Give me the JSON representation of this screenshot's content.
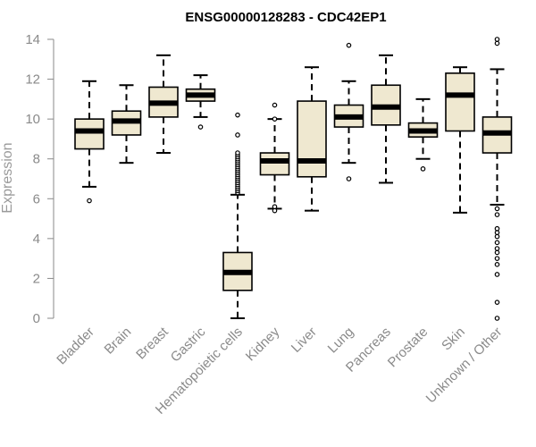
{
  "chart_data": {
    "type": "boxplot",
    "title": "ENSG00000128283 - CDC42EP1",
    "ylabel": "Expression",
    "xlabel": "",
    "ylim": [
      0,
      14
    ],
    "yticks": [
      0,
      2,
      4,
      6,
      8,
      10,
      12,
      14
    ],
    "colors": {
      "box_fill": "#efe8d0",
      "box_stroke": "#000000",
      "axis": "#8a8a8a",
      "text": "#8a8a8a"
    },
    "categories": [
      "Bladder",
      "Brain",
      "Breast",
      "Gastric",
      "Hematopoietic cells",
      "Kidney",
      "Liver",
      "Lung",
      "Pancreas",
      "Prostate",
      "Skin",
      "Unknown / Other"
    ],
    "boxes": [
      {
        "category": "Bladder",
        "whisker_low": 6.6,
        "q1": 8.5,
        "median": 9.4,
        "q3": 10.0,
        "whisker_high": 11.9,
        "outliers": [
          5.9
        ]
      },
      {
        "category": "Brain",
        "whisker_low": 7.8,
        "q1": 9.2,
        "median": 9.9,
        "q3": 10.4,
        "whisker_high": 11.7,
        "outliers": []
      },
      {
        "category": "Breast",
        "whisker_low": 8.3,
        "q1": 10.1,
        "median": 10.8,
        "q3": 11.6,
        "whisker_high": 13.2,
        "outliers": []
      },
      {
        "category": "Gastric",
        "whisker_low": 10.1,
        "q1": 10.9,
        "median": 11.2,
        "q3": 11.5,
        "whisker_high": 12.2,
        "outliers": [
          9.6
        ]
      },
      {
        "category": "Hematopoietic cells",
        "whisker_low": 0.0,
        "q1": 1.4,
        "median": 2.3,
        "q3": 3.3,
        "whisker_high": 6.2,
        "outliers": [
          6.3,
          6.4,
          6.5,
          6.6,
          6.7,
          6.8,
          6.9,
          7.0,
          7.1,
          7.2,
          7.3,
          7.4,
          7.5,
          7.6,
          7.7,
          7.8,
          7.9,
          8.0,
          8.1,
          8.2,
          8.3,
          9.2,
          10.2
        ]
      },
      {
        "category": "Kidney",
        "whisker_low": 5.5,
        "q1": 7.2,
        "median": 7.9,
        "q3": 8.3,
        "whisker_high": 10.0,
        "outliers": [
          5.4,
          5.6,
          10.0,
          10.7
        ]
      },
      {
        "category": "Liver",
        "whisker_low": 5.4,
        "q1": 7.1,
        "median": 7.9,
        "q3": 10.9,
        "whisker_high": 12.6,
        "outliers": []
      },
      {
        "category": "Lung",
        "whisker_low": 7.8,
        "q1": 9.6,
        "median": 10.1,
        "q3": 10.7,
        "whisker_high": 11.9,
        "outliers": [
          7.0,
          13.7
        ]
      },
      {
        "category": "Pancreas",
        "whisker_low": 6.8,
        "q1": 9.7,
        "median": 10.6,
        "q3": 11.7,
        "whisker_high": 13.2,
        "outliers": []
      },
      {
        "category": "Prostate",
        "whisker_low": 8.0,
        "q1": 9.1,
        "median": 9.4,
        "q3": 9.8,
        "whisker_high": 11.0,
        "outliers": [
          7.5
        ]
      },
      {
        "category": "Skin",
        "whisker_low": 5.3,
        "q1": 9.4,
        "median": 11.2,
        "q3": 12.3,
        "whisker_high": 12.6,
        "outliers": []
      },
      {
        "category": "Unknown / Other",
        "whisker_low": 5.7,
        "q1": 8.3,
        "median": 9.3,
        "q3": 10.1,
        "whisker_high": 12.5,
        "outliers": [
          0.0,
          0.8,
          2.2,
          2.7,
          3.0,
          3.3,
          3.5,
          3.8,
          4.1,
          4.3,
          4.5,
          5.2,
          5.5,
          13.8,
          14.0
        ]
      }
    ]
  }
}
